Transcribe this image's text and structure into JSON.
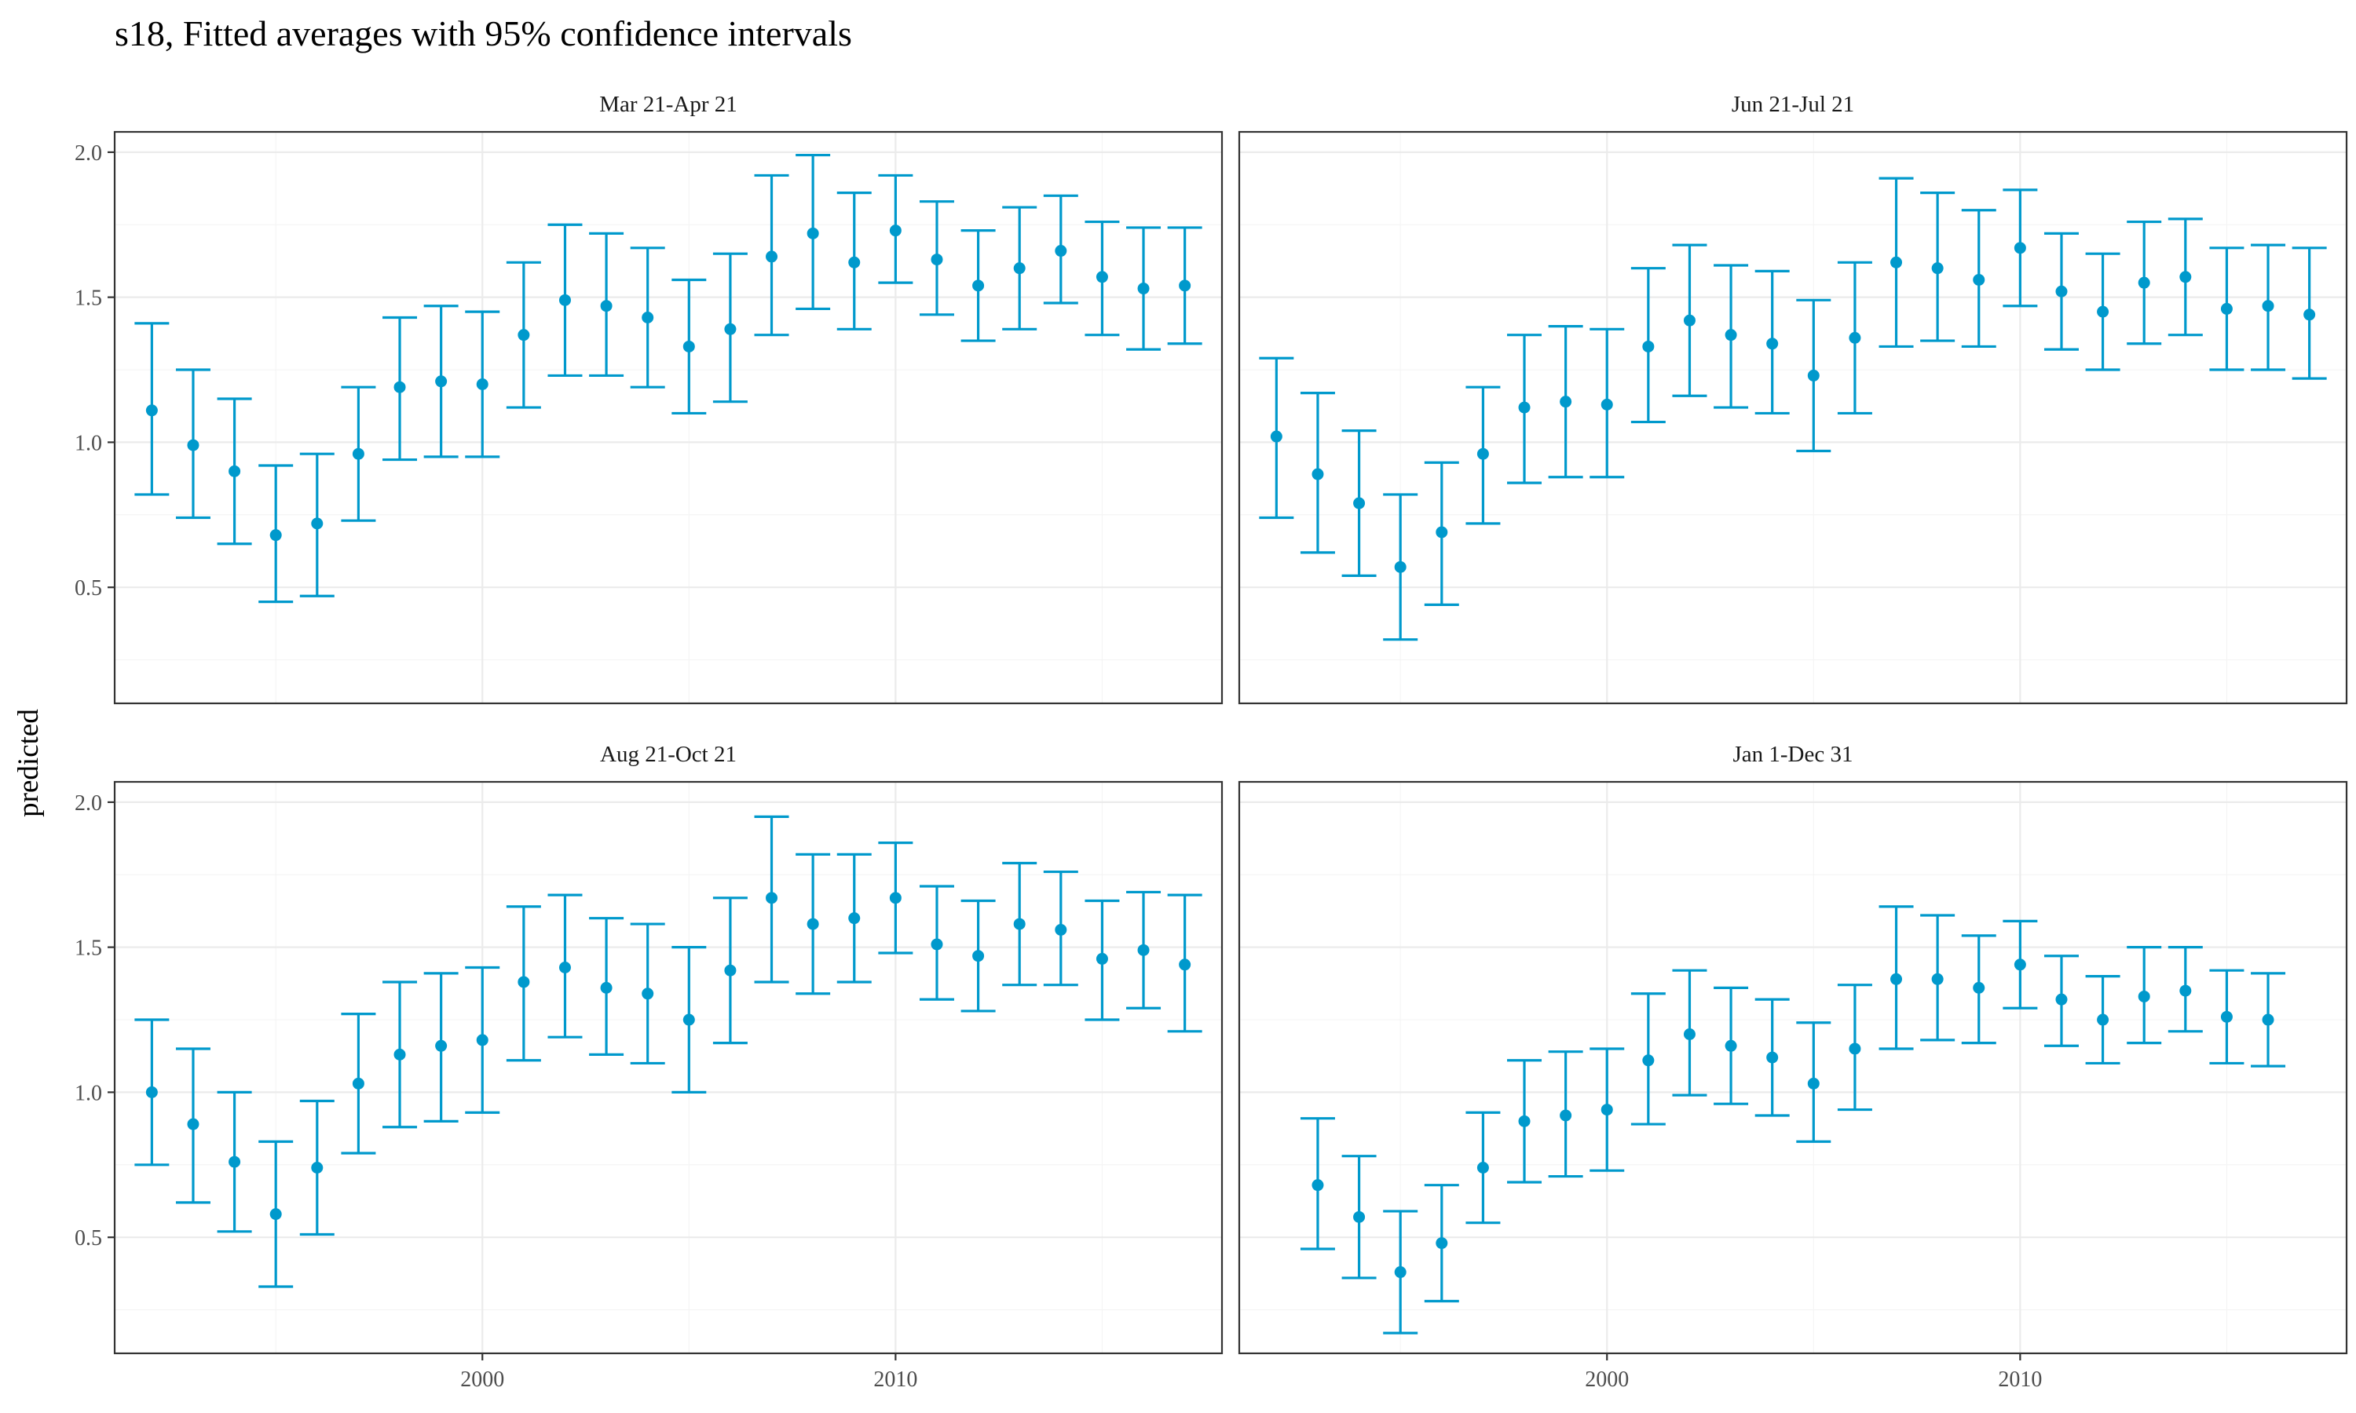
{
  "title": "s18, Fitted averages with 95% confidence intervals",
  "colors": {
    "series": "#0099cc"
  },
  "chart_data": {
    "type": "scatter",
    "ylabel": "predicted",
    "x_ticks": [
      2000,
      2010
    ],
    "y_ticks": [
      "0.5",
      "1.0",
      "1.5",
      "2.0"
    ],
    "xlim": [
      1991.1,
      2017.9
    ],
    "ylim": [
      0.1,
      2.07
    ],
    "grid": true,
    "panels": [
      {
        "label": "Mar 21-Apr 21",
        "x": [
          1992,
          1993,
          1994,
          1995,
          1996,
          1997,
          1998,
          1999,
          2000,
          2001,
          2002,
          2003,
          2004,
          2005,
          2006,
          2007,
          2008,
          2009,
          2010,
          2011,
          2012,
          2013,
          2014,
          2015,
          2016,
          2017
        ],
        "y": [
          1.11,
          0.99,
          0.9,
          0.68,
          0.72,
          0.96,
          1.19,
          1.21,
          1.2,
          1.37,
          1.49,
          1.47,
          1.43,
          1.33,
          1.39,
          1.64,
          1.72,
          1.62,
          1.73,
          1.63,
          1.54,
          1.6,
          1.66,
          1.57,
          1.53,
          1.54
        ],
        "lower": [
          0.82,
          0.74,
          0.65,
          0.45,
          0.47,
          0.73,
          0.94,
          0.95,
          0.95,
          1.12,
          1.23,
          1.23,
          1.19,
          1.1,
          1.14,
          1.37,
          1.46,
          1.39,
          1.55,
          1.44,
          1.35,
          1.39,
          1.48,
          1.37,
          1.32,
          1.34
        ],
        "upper": [
          1.41,
          1.25,
          1.15,
          0.92,
          0.96,
          1.19,
          1.43,
          1.47,
          1.45,
          1.62,
          1.75,
          1.72,
          1.67,
          1.56,
          1.65,
          1.92,
          1.99,
          1.86,
          1.92,
          1.83,
          1.73,
          1.81,
          1.85,
          1.76,
          1.74,
          1.74
        ]
      },
      {
        "label": "Jun 21-Jul 21",
        "x": [
          1992,
          1993,
          1994,
          1995,
          1996,
          1997,
          1998,
          1999,
          2000,
          2001,
          2002,
          2003,
          2004,
          2005,
          2006,
          2007,
          2008,
          2009,
          2010,
          2011,
          2012,
          2013,
          2014,
          2015,
          2016,
          2017
        ],
        "y": [
          1.02,
          0.89,
          0.79,
          0.57,
          0.69,
          0.96,
          1.12,
          1.14,
          1.13,
          1.33,
          1.42,
          1.37,
          1.34,
          1.23,
          1.36,
          1.62,
          1.6,
          1.56,
          1.67,
          1.52,
          1.45,
          1.55,
          1.57,
          1.46,
          1.47,
          1.44
        ],
        "lower": [
          0.74,
          0.62,
          0.54,
          0.32,
          0.44,
          0.72,
          0.86,
          0.88,
          0.88,
          1.07,
          1.16,
          1.12,
          1.1,
          0.97,
          1.1,
          1.33,
          1.35,
          1.33,
          1.47,
          1.32,
          1.25,
          1.34,
          1.37,
          1.25,
          1.25,
          1.22
        ],
        "upper": [
          1.29,
          1.17,
          1.04,
          0.82,
          0.93,
          1.19,
          1.37,
          1.4,
          1.39,
          1.6,
          1.68,
          1.61,
          1.59,
          1.49,
          1.62,
          1.91,
          1.86,
          1.8,
          1.87,
          1.72,
          1.65,
          1.76,
          1.77,
          1.67,
          1.68,
          1.67
        ]
      },
      {
        "label": "Aug 21-Oct 21",
        "x": [
          1992,
          1993,
          1994,
          1995,
          1996,
          1997,
          1998,
          1999,
          2000,
          2001,
          2002,
          2003,
          2004,
          2005,
          2006,
          2007,
          2008,
          2009,
          2010,
          2011,
          2012,
          2013,
          2014,
          2015,
          2016,
          2017
        ],
        "y": [
          1.0,
          0.89,
          0.76,
          0.58,
          0.74,
          1.03,
          1.13,
          1.16,
          1.18,
          1.38,
          1.43,
          1.36,
          1.34,
          1.25,
          1.42,
          1.67,
          1.58,
          1.6,
          1.67,
          1.51,
          1.47,
          1.58,
          1.56,
          1.46,
          1.49,
          1.44
        ],
        "lower": [
          0.75,
          0.62,
          0.52,
          0.33,
          0.51,
          0.79,
          0.88,
          0.9,
          0.93,
          1.11,
          1.19,
          1.13,
          1.1,
          1.0,
          1.17,
          1.38,
          1.34,
          1.38,
          1.48,
          1.32,
          1.28,
          1.37,
          1.37,
          1.25,
          1.29,
          1.21
        ],
        "upper": [
          1.25,
          1.15,
          1.0,
          0.83,
          0.97,
          1.27,
          1.38,
          1.41,
          1.43,
          1.64,
          1.68,
          1.6,
          1.58,
          1.5,
          1.67,
          1.95,
          1.82,
          1.82,
          1.86,
          1.71,
          1.66,
          1.79,
          1.76,
          1.66,
          1.69,
          1.68
        ]
      },
      {
        "label": "Jan 1-Dec 31",
        "x": [
          1993,
          1994,
          1995,
          1996,
          1997,
          1998,
          1999,
          2000,
          2001,
          2002,
          2003,
          2004,
          2005,
          2006,
          2007,
          2008,
          2009,
          2010,
          2011,
          2012,
          2013,
          2014,
          2015,
          2016
        ],
        "y": [
          0.68,
          0.57,
          0.38,
          0.48,
          0.74,
          0.9,
          0.92,
          0.94,
          1.11,
          1.2,
          1.16,
          1.12,
          1.03,
          1.15,
          1.39,
          1.39,
          1.36,
          1.44,
          1.32,
          1.25,
          1.33,
          1.35,
          1.26,
          1.25
        ],
        "lower": [
          0.46,
          0.36,
          0.17,
          0.28,
          0.55,
          0.69,
          0.71,
          0.73,
          0.89,
          0.99,
          0.96,
          0.92,
          0.83,
          0.94,
          1.15,
          1.18,
          1.17,
          1.29,
          1.16,
          1.1,
          1.17,
          1.21,
          1.1,
          1.09
        ],
        "upper": [
          0.91,
          0.78,
          0.59,
          0.68,
          0.93,
          1.11,
          1.14,
          1.15,
          1.34,
          1.42,
          1.36,
          1.32,
          1.24,
          1.37,
          1.64,
          1.61,
          1.54,
          1.59,
          1.47,
          1.4,
          1.5,
          1.5,
          1.42,
          1.41
        ]
      }
    ]
  }
}
